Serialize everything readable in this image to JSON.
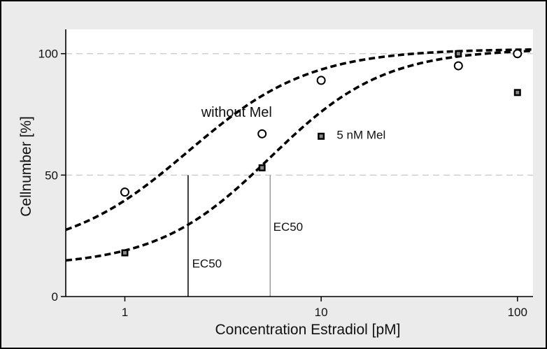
{
  "chart_data": {
    "type": "scatter",
    "title": "",
    "xlabel": "Concentration Estradiol  [pM]",
    "ylabel": "Cellnumber [%]",
    "x_scale": "log",
    "xlim": [
      0.5,
      120
    ],
    "ylim": [
      0,
      110
    ],
    "x_ticks": [
      "1",
      "10",
      "100"
    ],
    "y_ticks": [
      "0",
      "50",
      "100"
    ],
    "grid": "dashed horizontal at 50 and 100",
    "series": [
      {
        "name": "",
        "marker": "open-circle",
        "points": [
          [
            1,
            43
          ],
          [
            5,
            67
          ],
          [
            10,
            89
          ],
          [
            50,
            95
          ],
          [
            100,
            100
          ]
        ]
      },
      {
        "name": "",
        "marker": "filled-square",
        "points": [
          [
            1,
            18
          ],
          [
            5,
            53
          ],
          [
            10,
            66
          ],
          [
            50,
            100
          ],
          [
            100,
            84
          ]
        ]
      }
    ],
    "curves": [
      {
        "label": "without Mel",
        "style": "dashed",
        "ec50": 2.1,
        "bottom": 17.5,
        "top": 102,
        "hill": 1.4
      },
      {
        "label": "5 nM Mel",
        "style": "dashed",
        "ec50": 5.5,
        "bottom": 12.5,
        "top": 102,
        "hill": 1.5
      }
    ],
    "annotations": [
      {
        "text": "without Mel",
        "x": 2.45,
        "y": 74
      },
      {
        "text": "5 nM Mel",
        "x": 12.0,
        "y": 65
      },
      {
        "text": "EC50",
        "x": 2.2,
        "y": 12
      },
      {
        "text": "EC50",
        "x": 5.7,
        "y": 27
      }
    ],
    "ec50_lines": [
      {
        "x": 2.1,
        "y_top": 50,
        "color": "#000000"
      },
      {
        "x": 5.5,
        "y_top": 50,
        "color": "#999999"
      }
    ],
    "colors": {
      "frame_background": "#ebebeb",
      "plot_background": "#ffffff",
      "grid": "#c8c8c8",
      "marker_fill": "#000000",
      "marker_center": "#888888"
    }
  }
}
